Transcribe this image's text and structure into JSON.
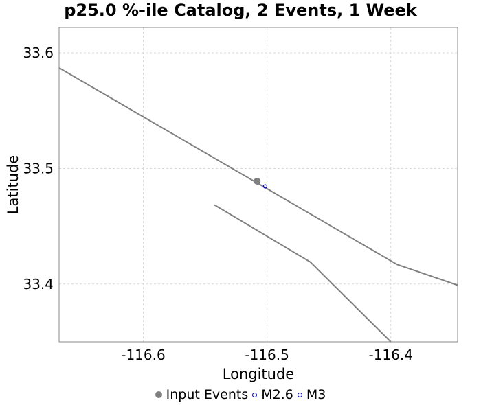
{
  "chart_data": {
    "type": "scatter",
    "title": "p25.0 %-ile Catalog, 2 Events, 1 Week",
    "xlabel": "Longitude",
    "ylabel": "Latitude",
    "xlim": [
      -116.668,
      -116.346
    ],
    "ylim": [
      33.35,
      33.622
    ],
    "x_ticks": [
      -116.6,
      -116.5,
      -116.4
    ],
    "x_tick_labels": [
      "-116.6",
      "-116.5",
      "-116.4"
    ],
    "y_ticks": [
      33.4,
      33.5,
      33.6
    ],
    "y_tick_labels": [
      "33.4",
      "33.5",
      "33.6"
    ],
    "grid": true,
    "legend_position": "bottom",
    "series": [
      {
        "name": "Input Events",
        "marker": "filled-circle",
        "color": "#808080",
        "points": [
          {
            "x": -116.508,
            "y": 33.489
          }
        ]
      },
      {
        "name": "M2.6",
        "marker": "open-circle",
        "color": "#0000c8",
        "points": [
          {
            "x": -116.5015,
            "y": 33.4845
          }
        ]
      },
      {
        "name": "M3",
        "marker": "open-circle",
        "color": "#0000c8",
        "points": [
          {
            "x": -116.5015,
            "y": 33.4845
          }
        ]
      }
    ],
    "fault_traces": [
      {
        "color": "#808080",
        "points": [
          {
            "x": -116.668,
            "y": 33.587
          },
          {
            "x": -116.5,
            "y": 33.4825
          },
          {
            "x": -116.395,
            "y": 33.417
          },
          {
            "x": -116.346,
            "y": 33.399
          }
        ]
      },
      {
        "color": "#808080",
        "points": [
          {
            "x": -116.5425,
            "y": 33.4685
          },
          {
            "x": -116.465,
            "y": 33.419
          },
          {
            "x": -116.4,
            "y": 33.35
          }
        ]
      }
    ]
  }
}
